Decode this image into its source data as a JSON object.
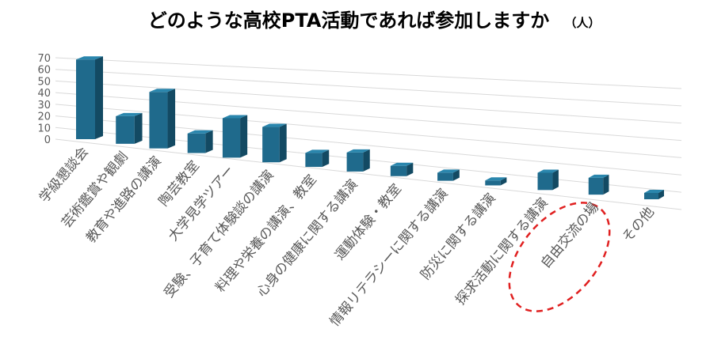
{
  "chart_data": {
    "type": "bar3d",
    "title": "どのような高校PTA活動であれば参加しますか",
    "unit": "（人）",
    "categories": [
      "学級懇談会",
      "芸術鑑賞や観劇",
      "教育や進路の講演",
      "陶芸教室",
      "大学見学ツアー",
      "受験、子育て体験談の講演",
      "料理や栄養の講演、教室",
      "心身の健康に関する講演",
      "運動体験・教室",
      "情報リテラシーに関する講演",
      "防災に関する講演",
      "探求活動に関する講演",
      "自由交流の場",
      "その他"
    ],
    "values": [
      65,
      23,
      48,
      17,
      35,
      32,
      13,
      18,
      10,
      8,
      5,
      18,
      18,
      7
    ],
    "color": "#1f6a8c",
    "ylim": [
      0,
      70
    ],
    "yticks": [
      0,
      10,
      20,
      30,
      40,
      50,
      60,
      70
    ],
    "grid": true
  }
}
